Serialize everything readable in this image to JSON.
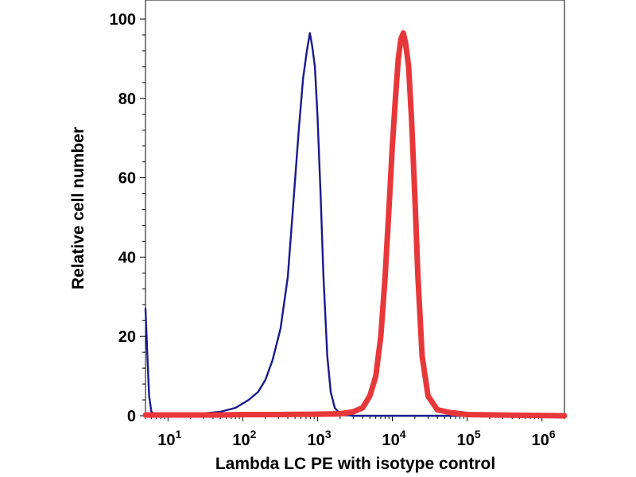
{
  "chart_data": {
    "type": "line",
    "xlabel": "Lambda LC PE with isotype control",
    "ylabel": "Relative cell number",
    "x_scale": "log10",
    "xlim": [
      5,
      2000000
    ],
    "ylim": [
      0,
      100
    ],
    "grid": false,
    "legend": "none",
    "x_ticks": [
      {
        "value": 10,
        "base": "10",
        "exp": "1"
      },
      {
        "value": 100,
        "base": "10",
        "exp": "2"
      },
      {
        "value": 1000,
        "base": "10",
        "exp": "3"
      },
      {
        "value": 10000,
        "base": "10",
        "exp": "4"
      },
      {
        "value": 100000,
        "base": "10",
        "exp": "5"
      },
      {
        "value": 1000000,
        "base": "10",
        "exp": "6"
      }
    ],
    "y_ticks": [
      {
        "value": 0,
        "label": "0"
      },
      {
        "value": 20,
        "label": "20"
      },
      {
        "value": 40,
        "label": "40"
      },
      {
        "value": 60,
        "label": "60"
      },
      {
        "value": 80,
        "label": "80"
      },
      {
        "value": 100,
        "label": "100"
      }
    ],
    "series": [
      {
        "color": "#1a1a8c",
        "points": [
          [
            5,
            27
          ],
          [
            5.3,
            15
          ],
          [
            5.6,
            5
          ],
          [
            6,
            1
          ],
          [
            7,
            0.3
          ],
          [
            10,
            0.2
          ],
          [
            15,
            0.5
          ],
          [
            20,
            0.5
          ],
          [
            30,
            0.6
          ],
          [
            50,
            1
          ],
          [
            80,
            2
          ],
          [
            120,
            4
          ],
          [
            160,
            6
          ],
          [
            200,
            9
          ],
          [
            250,
            14
          ],
          [
            320,
            22
          ],
          [
            400,
            35
          ],
          [
            480,
            55
          ],
          [
            560,
            72
          ],
          [
            640,
            85
          ],
          [
            720,
            92
          ],
          [
            790,
            96.5
          ],
          [
            850,
            93
          ],
          [
            920,
            88
          ],
          [
            1000,
            75
          ],
          [
            1100,
            55
          ],
          [
            1200,
            35
          ],
          [
            1350,
            15
          ],
          [
            1500,
            6
          ],
          [
            1700,
            2
          ],
          [
            2000,
            0.5
          ],
          [
            2500,
            0.2
          ],
          [
            3000,
            0
          ],
          [
            10000,
            0
          ],
          [
            100000,
            0
          ],
          [
            2000000,
            0
          ]
        ]
      },
      {
        "color": "#e8373a",
        "points": [
          [
            5,
            0.2
          ],
          [
            50,
            0.2
          ],
          [
            100,
            0.3
          ],
          [
            300,
            0.3
          ],
          [
            1000,
            0.4
          ],
          [
            2000,
            0.5
          ],
          [
            3000,
            1
          ],
          [
            4000,
            2
          ],
          [
            5000,
            5
          ],
          [
            6000,
            10
          ],
          [
            7000,
            20
          ],
          [
            8000,
            35
          ],
          [
            9000,
            52
          ],
          [
            10000,
            68
          ],
          [
            11000,
            80
          ],
          [
            12000,
            90
          ],
          [
            13000,
            95
          ],
          [
            14000,
            96.5
          ],
          [
            15000,
            94
          ],
          [
            16500,
            88
          ],
          [
            18000,
            75
          ],
          [
            20000,
            55
          ],
          [
            22000,
            35
          ],
          [
            25000,
            15
          ],
          [
            30000,
            5
          ],
          [
            40000,
            1.5
          ],
          [
            60000,
            0.8
          ],
          [
            100000,
            0.3
          ],
          [
            2000000,
            0
          ]
        ]
      }
    ]
  }
}
